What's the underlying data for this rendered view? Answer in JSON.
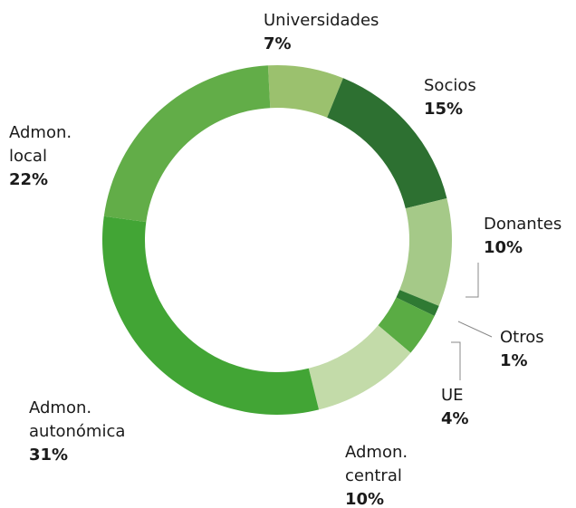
{
  "chart_data": {
    "type": "donut",
    "categories": [
      "Universidades",
      "Socios",
      "Donantes",
      "Otros",
      "UE",
      "Admon. central",
      "Admon. autonómica",
      "Admon. local"
    ],
    "values": [
      7,
      15,
      10,
      1,
      4,
      10,
      31,
      22
    ],
    "value_labels": [
      "7%",
      "15%",
      "10%",
      "1%",
      "4%",
      "10%",
      "31%",
      "22%"
    ],
    "colors": [
      "#9bc16e",
      "#2d7031",
      "#a5c988",
      "#2f7a33",
      "#5aac44",
      "#c3dba9",
      "#42a535",
      "#62ad48"
    ]
  }
}
